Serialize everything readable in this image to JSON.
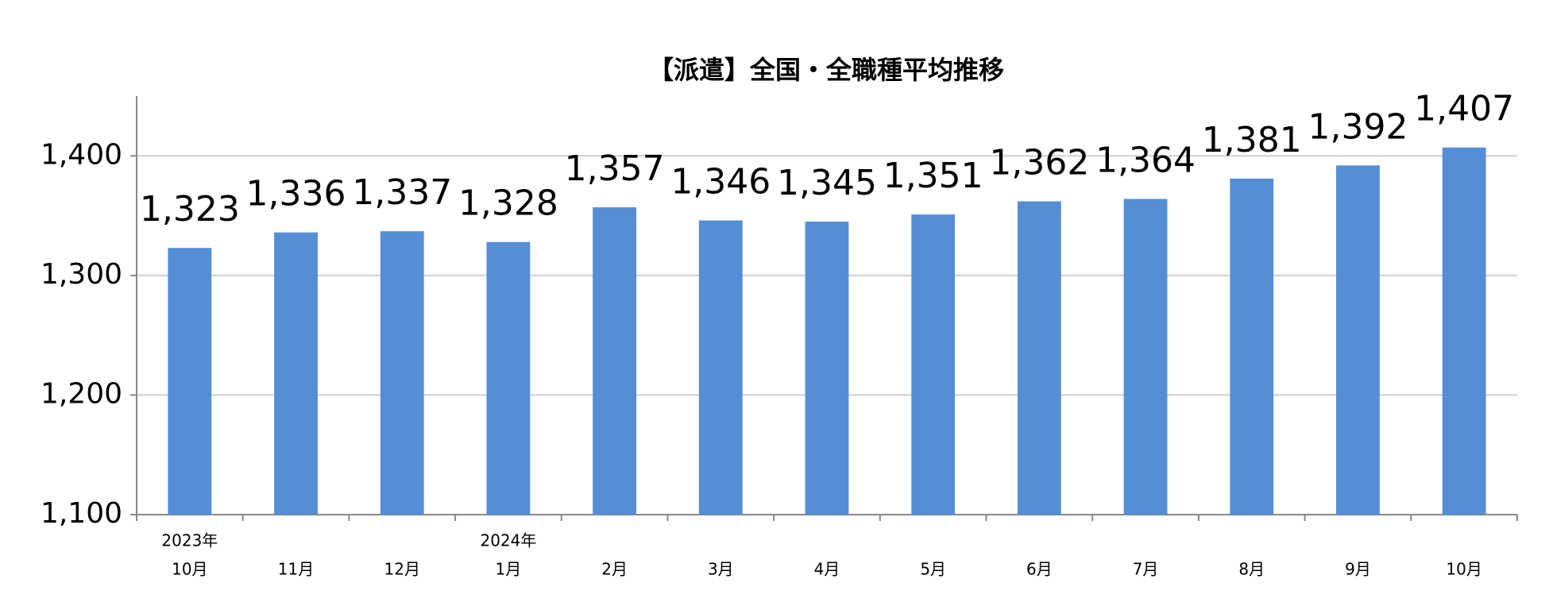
{
  "chart_data": {
    "type": "bar",
    "title": "【派遣】全国・全職種平均推移",
    "categories": [
      [
        "2023年",
        "10月"
      ],
      [
        "11月"
      ],
      [
        "12月"
      ],
      [
        "2024年",
        "1月"
      ],
      [
        "2月"
      ],
      [
        "3月"
      ],
      [
        "4月"
      ],
      [
        "5月"
      ],
      [
        "6月"
      ],
      [
        "7月"
      ],
      [
        "8月"
      ],
      [
        "9月"
      ],
      [
        "10月"
      ]
    ],
    "values": [
      1323,
      1336,
      1337,
      1328,
      1357,
      1346,
      1345,
      1351,
      1362,
      1364,
      1381,
      1392,
      1407
    ],
    "value_labels": [
      "1,323",
      "1,336",
      "1,337",
      "1,328",
      "1,357",
      "1,346",
      "1,345",
      "1,351",
      "1,362",
      "1,364",
      "1,381",
      "1,392",
      "1,407"
    ],
    "color": "#558ed5",
    "ylim": [
      1100,
      1450
    ],
    "yticks": [
      {
        "value": 1100,
        "label": "1,100"
      },
      {
        "value": 1200,
        "label": "1,200"
      },
      {
        "value": 1300,
        "label": "1,300"
      },
      {
        "value": 1400,
        "label": "1,400"
      }
    ],
    "grid": true
  }
}
